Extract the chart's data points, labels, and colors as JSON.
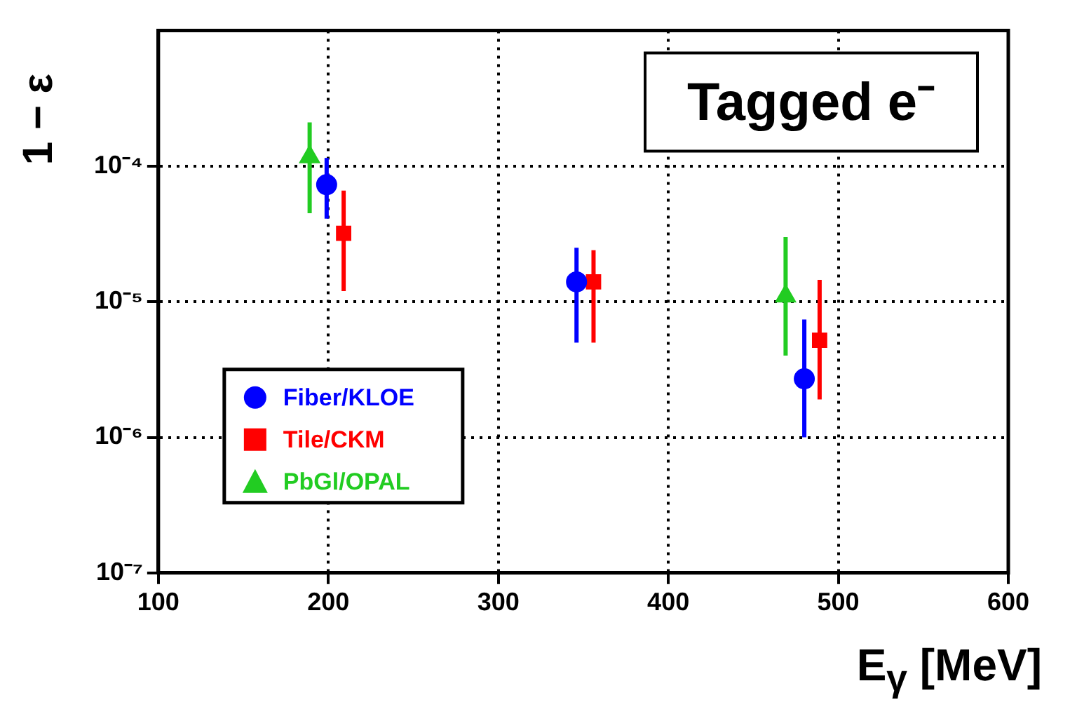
{
  "chart_data": {
    "type": "scatter",
    "xlabel": "E$_{γ}$ [MeV]",
    "ylabel": "1 − ε",
    "annotations": [
      "Tagged e⁻"
    ],
    "xlim": [
      100,
      600
    ],
    "xticks": [
      100,
      200,
      300,
      400,
      500,
      600
    ],
    "ylim": [
      1e-07,
      0.001
    ],
    "yticks": [
      {
        "value": 1e-07,
        "label": "10⁻⁷"
      },
      {
        "value": 1e-06,
        "label": "10⁻⁶"
      },
      {
        "value": 1e-05,
        "label": "10⁻⁵"
      },
      {
        "value": 0.0001,
        "label": "10⁻⁴"
      }
    ],
    "log": "y",
    "grid": true,
    "legend": "bottom left",
    "series": [
      {
        "name": "Fiber/KLOE",
        "color": "#0000ff",
        "marker": "circle",
        "x": [
          199,
          346,
          480
        ],
        "values": [
          7.3e-05,
          1.4e-05,
          2.7e-06
        ],
        "errors": [
          [
            4.1e-05,
            0.000115
          ],
          [
            5e-06,
            2.5e-05
          ],
          [
            1e-06,
            7.4e-06
          ]
        ]
      },
      {
        "name": "Tile/CKM",
        "color": "#ff0000",
        "marker": "square",
        "x": [
          209,
          356,
          489
        ],
        "values": [
          3.2e-05,
          1.4e-05,
          5.2e-06
        ],
        "errors": [
          [
            1.2e-05,
            6.6e-05
          ],
          [
            5e-06,
            2.4e-05
          ],
          [
            1.9e-06,
            1.45e-05
          ]
        ]
      },
      {
        "name": "PbGl/OPAL",
        "color": "#22cc22",
        "marker": "triangle",
        "x": [
          189,
          469
        ],
        "values": [
          0.000117,
          1.1e-05
        ],
        "errors": [
          [
            4.5e-05,
            0.00021
          ],
          [
            4e-06,
            3e-05
          ]
        ]
      }
    ]
  }
}
